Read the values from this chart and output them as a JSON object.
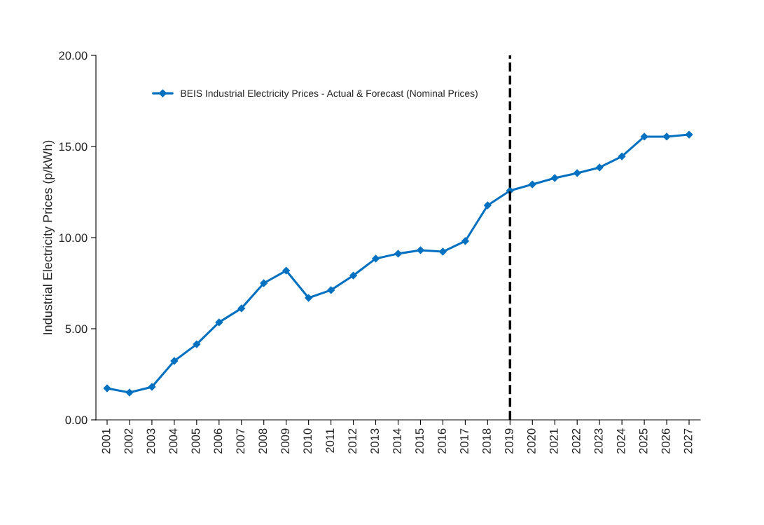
{
  "chart_data": {
    "type": "line",
    "ylabel": "Industrial Electricity Prices (p/kWh)",
    "categories": [
      "2001",
      "2002",
      "2003",
      "2004",
      "2005",
      "2006",
      "2007",
      "2008",
      "2009",
      "2010",
      "2011",
      "2012",
      "2013",
      "2014",
      "2015",
      "2016",
      "2017",
      "2018",
      "2019",
      "2020",
      "2021",
      "2022",
      "2023",
      "2024",
      "2025",
      "2026",
      "2027"
    ],
    "series": [
      {
        "name": "BEIS Industrial Electricity Prices - Actual & Forecast (Nominal Prices)",
        "color": "#0070c0",
        "values": [
          1.73,
          1.5,
          1.81,
          3.23,
          4.15,
          5.35,
          6.12,
          7.5,
          8.19,
          6.69,
          7.12,
          7.92,
          8.85,
          9.12,
          9.31,
          9.23,
          9.81,
          11.77,
          12.58,
          12.92,
          13.27,
          13.54,
          13.85,
          14.46,
          15.54,
          15.54,
          15.65
        ]
      }
    ],
    "ylim": [
      0,
      20
    ],
    "yticks": [
      {
        "value": 0,
        "label": "0.00"
      },
      {
        "value": 5,
        "label": "5.00"
      },
      {
        "value": 10,
        "label": "10.00"
      },
      {
        "value": 15,
        "label": "15.00"
      },
      {
        "value": 20,
        "label": "20.00"
      }
    ],
    "ref_lines": [
      {
        "axis": "x",
        "value": "2019",
        "color": "#000000",
        "line_style": "dashed"
      }
    ],
    "grid": false,
    "legend": "top left",
    "marker": "diamond",
    "line_style": "solid"
  }
}
